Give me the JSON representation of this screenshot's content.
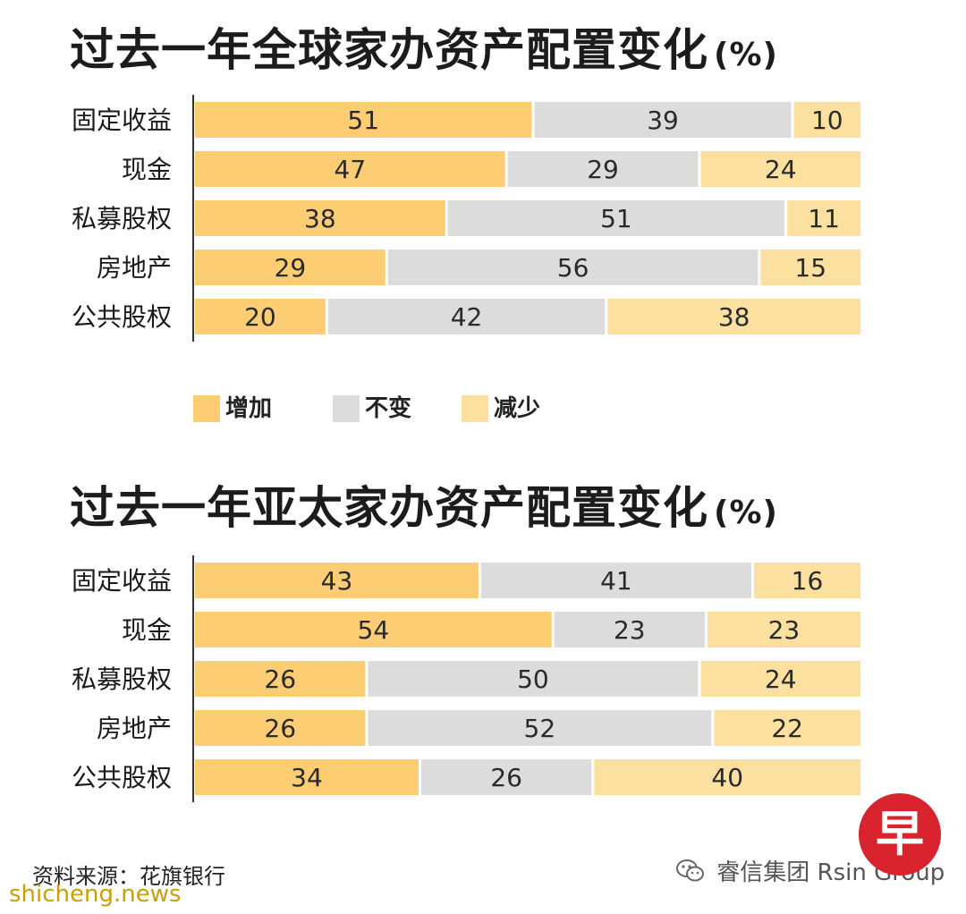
{
  "titles": [
    {
      "text": "过去一年全球家办资产配置变化",
      "unit": "(%)"
    },
    {
      "text": "过去一年亚太家办资产配置变化",
      "unit": "(%)"
    }
  ],
  "legend": [
    {
      "label": "增加",
      "color": "#fccd73"
    },
    {
      "label": "不变",
      "color": "#dcdcdc"
    },
    {
      "label": "减少",
      "color": "#fce0a0"
    }
  ],
  "chart_data": [
    {
      "type": "bar",
      "orientation": "horizontal",
      "stacked": true,
      "title": "过去一年全球家办资产配置变化(%)",
      "categories": [
        "固定收益",
        "现金",
        "私募股权",
        "房地产",
        "公共股权"
      ],
      "series": [
        {
          "name": "增加",
          "values": [
            51,
            47,
            38,
            29,
            20
          ]
        },
        {
          "name": "不变",
          "values": [
            39,
            29,
            51,
            56,
            42
          ]
        },
        {
          "name": "减少",
          "values": [
            10,
            24,
            11,
            15,
            38
          ]
        }
      ],
      "xlim": [
        0,
        100
      ],
      "legend_position": "bottom-left"
    },
    {
      "type": "bar",
      "orientation": "horizontal",
      "stacked": true,
      "title": "过去一年亚太家办资产配置变化(%)",
      "categories": [
        "固定收益",
        "现金",
        "私募股权",
        "房地产",
        "公共股权"
      ],
      "series": [
        {
          "name": "增加",
          "values": [
            43,
            54,
            26,
            26,
            34
          ]
        },
        {
          "name": "不变",
          "values": [
            41,
            23,
            50,
            52,
            26
          ]
        },
        {
          "name": "减少",
          "values": [
            16,
            23,
            24,
            22,
            40
          ]
        }
      ],
      "xlim": [
        0,
        100
      ]
    }
  ],
  "source": "资料来源：花旗银行",
  "watermark": "shicheng.news",
  "wechat_account": "睿信集团 Rsin Group",
  "logo_char": "早"
}
